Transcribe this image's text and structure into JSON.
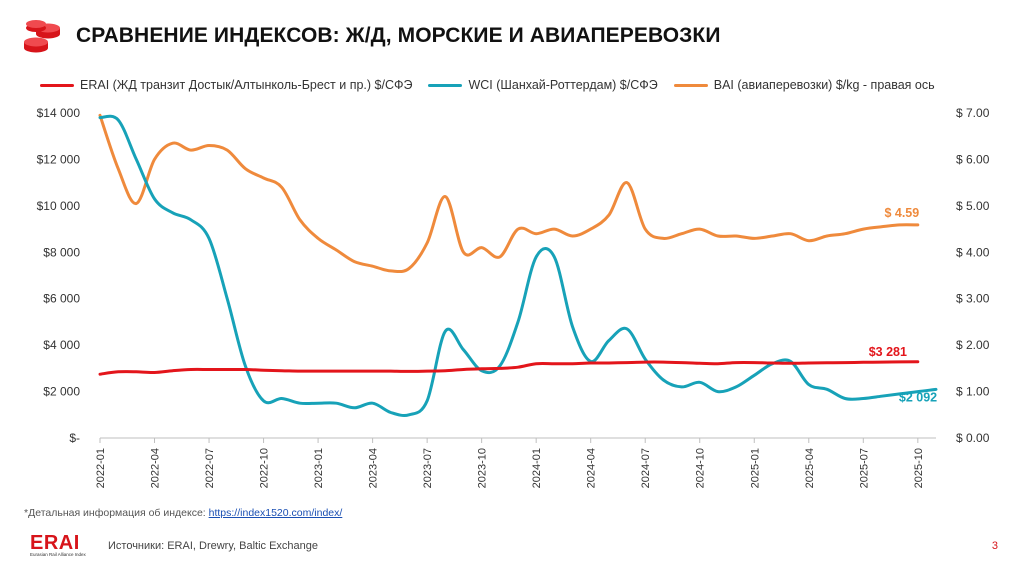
{
  "title": "СРАВНЕНИЕ ИНДЕКСОВ:  Ж/Д, МОРСКИЕ И АВИАПЕРЕВОЗКИ",
  "legend": [
    {
      "label": "ERAI (ЖД транзит Достык/Алтынколь-Брест и пр.)  $/СФЭ",
      "color": "#e3151b"
    },
    {
      "label": "WCI (Шанхай-Роттердам) $/СФЭ",
      "color": "#17a2b8"
    },
    {
      "label": "BAI (авиаперевозки) $/kg - правая ось",
      "color": "#ef8a3c"
    }
  ],
  "footnote": {
    "prefix": "*Детальная информация  об индексе: ",
    "link": "https://index1520.com/index/"
  },
  "logo": {
    "name": "ERAI",
    "subtitle": "Eurasian Rail Alliance Index"
  },
  "sources": "Источники:  ERAI, Drewry, Baltic Exchange",
  "page_number": "3",
  "chart_data": {
    "type": "line",
    "x_tick_labels": [
      "2022-01",
      "2022-04",
      "2022-07",
      "2022-10",
      "2023-01",
      "2023-04",
      "2023-07",
      "2023-10",
      "2024-01",
      "2024-04",
      "2024-07",
      "2024-10",
      "2025-01",
      "2025-04",
      "2025-07",
      "2025-10"
    ],
    "x_range": [
      0,
      46
    ],
    "y_left": {
      "ticks": [
        "$-",
        "$2 000",
        "$4 000",
        "$6 000",
        "$8 000",
        "$10 000",
        "$12 000",
        "$14 000"
      ],
      "range": [
        0,
        14000
      ]
    },
    "y_right": {
      "ticks": [
        "$ 0.00",
        "$ 1.00",
        "$ 2.00",
        "$ 3.00",
        "$ 4.00",
        "$ 5.00",
        "$ 6.00",
        "$ 7.00"
      ],
      "range": [
        0,
        7
      ]
    },
    "grid": false,
    "legend_position": "top",
    "series": [
      {
        "name": "ERAI (ЖД транзит Достык/Алтынколь-Брест и пр.)  $/СФЭ",
        "axis": "left",
        "color": "#e3151b",
        "x": [
          0,
          1,
          2,
          3,
          4,
          5,
          6,
          7,
          8,
          9,
          10,
          11,
          12,
          13,
          14,
          15,
          16,
          17,
          18,
          19,
          20,
          21,
          22,
          23,
          24,
          25,
          26,
          27,
          28,
          29,
          30,
          31,
          32,
          33,
          34,
          35,
          36,
          37,
          38,
          39,
          40,
          41,
          42,
          43,
          44,
          45
        ],
        "y": [
          2750,
          2850,
          2850,
          2820,
          2900,
          2950,
          2950,
          2950,
          2950,
          2920,
          2900,
          2880,
          2880,
          2880,
          2880,
          2880,
          2880,
          2870,
          2880,
          2900,
          2950,
          2980,
          3000,
          3050,
          3200,
          3200,
          3200,
          3230,
          3230,
          3250,
          3270,
          3270,
          3250,
          3220,
          3200,
          3250,
          3250,
          3230,
          3220,
          3230,
          3240,
          3250,
          3260,
          3270,
          3280,
          3281
        ],
        "end_label": "$3 281"
      },
      {
        "name": "WCI (Шанхай-Роттердам) $/СФЭ",
        "axis": "left",
        "color": "#17a2b8",
        "x": [
          0,
          1,
          2,
          3,
          4,
          5,
          6,
          7,
          8,
          9,
          10,
          11,
          12,
          13,
          14,
          15,
          16,
          17,
          18,
          19,
          20,
          21,
          22,
          23,
          24,
          25,
          26,
          27,
          28,
          29,
          30,
          31,
          32,
          33,
          34,
          35,
          36,
          37,
          38,
          39,
          40,
          41,
          42,
          43,
          44,
          45,
          46
        ],
        "y": [
          13800,
          13700,
          12000,
          10300,
          9700,
          9400,
          8600,
          6000,
          3100,
          1600,
          1700,
          1500,
          1500,
          1500,
          1300,
          1500,
          1100,
          1000,
          1600,
          4600,
          3800,
          2900,
          3100,
          5000,
          7800,
          7800,
          4800,
          3300,
          4200,
          4700,
          3400,
          2500,
          2200,
          2400,
          2000,
          2200,
          2700,
          3200,
          3300,
          2300,
          2100,
          1700,
          1700,
          1800,
          1900,
          2000,
          2092
        ],
        "end_label": "$2 092"
      },
      {
        "name": "BAI (авиаперевозки) $/kg - правая ось",
        "axis": "right",
        "color": "#ef8a3c",
        "x": [
          0,
          1,
          2,
          3,
          4,
          5,
          6,
          7,
          8,
          9,
          10,
          11,
          12,
          13,
          14,
          15,
          16,
          17,
          18,
          19,
          20,
          21,
          22,
          23,
          24,
          25,
          26,
          27,
          28,
          29,
          30,
          31,
          32,
          33,
          34,
          35,
          36,
          37,
          38,
          39,
          40,
          41,
          42,
          43,
          44,
          45
        ],
        "y": [
          6.95,
          5.8,
          5.05,
          6.0,
          6.35,
          6.2,
          6.3,
          6.2,
          5.8,
          5.6,
          5.4,
          4.7,
          4.3,
          4.05,
          3.8,
          3.7,
          3.6,
          3.65,
          4.2,
          5.2,
          4.0,
          4.1,
          3.9,
          4.5,
          4.4,
          4.5,
          4.35,
          4.5,
          4.8,
          5.5,
          4.5,
          4.3,
          4.4,
          4.5,
          4.35,
          4.35,
          4.3,
          4.35,
          4.4,
          4.25,
          4.35,
          4.4,
          4.5,
          4.55,
          4.59,
          4.59
        ],
        "end_label": "$ 4.59"
      }
    ]
  }
}
